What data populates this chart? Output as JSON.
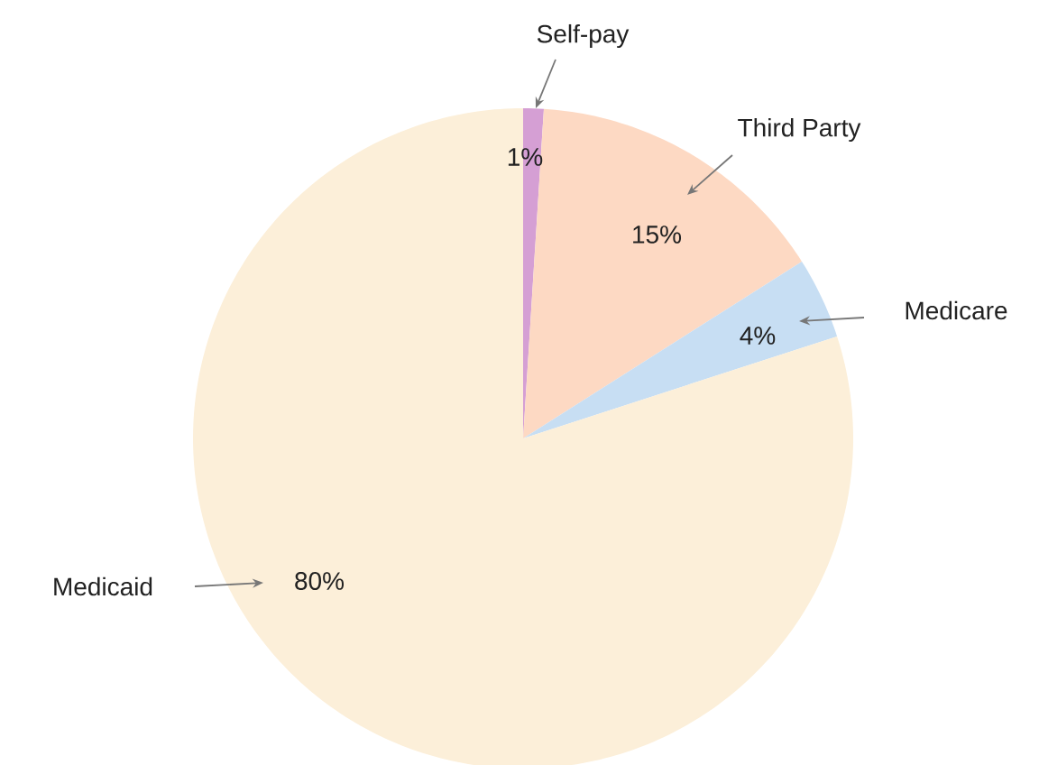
{
  "chart_data": {
    "type": "pie",
    "categories": [
      "Self-pay",
      "Third Party",
      "Medicare",
      "Medicaid"
    ],
    "values": [
      1,
      15,
      4,
      80
    ],
    "value_labels": [
      "1%",
      "15%",
      "4%",
      "80%"
    ],
    "colors": [
      "#d59fd4",
      "#fdd9c3",
      "#c7def3",
      "#fcefd9"
    ]
  }
}
